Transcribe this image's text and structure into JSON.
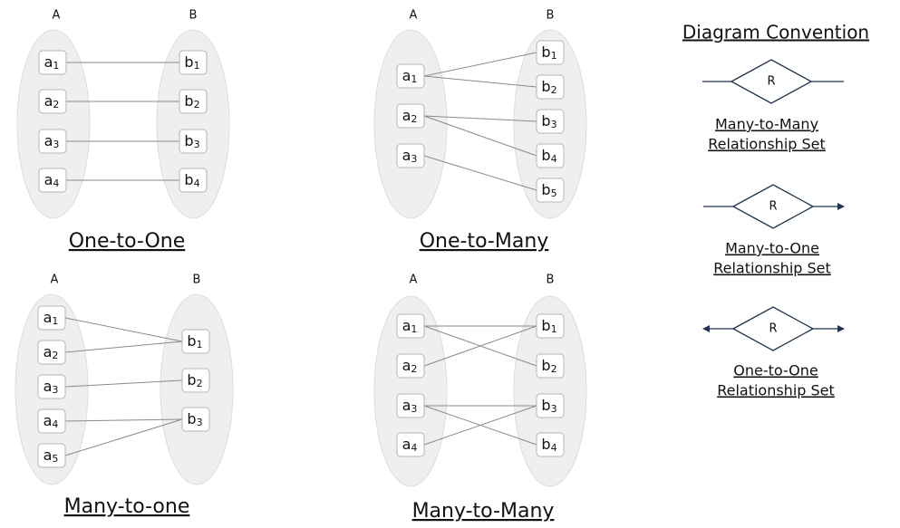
{
  "diagrams": [
    {
      "title": "One-to-One",
      "set_a": "A",
      "set_b": "B",
      "a_nodes": [
        {
          "base": "a",
          "sub": "1"
        },
        {
          "base": "a",
          "sub": "2"
        },
        {
          "base": "a",
          "sub": "3"
        },
        {
          "base": "a",
          "sub": "4"
        }
      ],
      "b_nodes": [
        {
          "base": "b",
          "sub": "1"
        },
        {
          "base": "b",
          "sub": "2"
        },
        {
          "base": "b",
          "sub": "3"
        },
        {
          "base": "b",
          "sub": "4"
        }
      ],
      "links": [
        [
          0,
          0
        ],
        [
          1,
          1
        ],
        [
          2,
          2
        ],
        [
          3,
          3
        ]
      ]
    },
    {
      "title": "One-to-Many",
      "set_a": "A",
      "set_b": "B",
      "a_nodes": [
        {
          "base": "a",
          "sub": "1"
        },
        {
          "base": "a",
          "sub": "2"
        },
        {
          "base": "a",
          "sub": "3"
        }
      ],
      "b_nodes": [
        {
          "base": "b",
          "sub": "1"
        },
        {
          "base": "b",
          "sub": "2"
        },
        {
          "base": "b",
          "sub": "3"
        },
        {
          "base": "b",
          "sub": "4"
        },
        {
          "base": "b",
          "sub": "5"
        }
      ],
      "links": [
        [
          0,
          0
        ],
        [
          0,
          1
        ],
        [
          1,
          2
        ],
        [
          1,
          3
        ],
        [
          2,
          4
        ]
      ]
    },
    {
      "title": "Many-to-one",
      "set_a": "A",
      "set_b": "B",
      "a_nodes": [
        {
          "base": "a",
          "sub": "1"
        },
        {
          "base": "a",
          "sub": "2"
        },
        {
          "base": "a",
          "sub": "3"
        },
        {
          "base": "a",
          "sub": "4"
        },
        {
          "base": "a",
          "sub": "5"
        }
      ],
      "b_nodes": [
        {
          "base": "b",
          "sub": "1"
        },
        {
          "base": "b",
          "sub": "2"
        },
        {
          "base": "b",
          "sub": "3"
        }
      ],
      "links": [
        [
          0,
          0
        ],
        [
          1,
          0
        ],
        [
          2,
          1
        ],
        [
          3,
          2
        ],
        [
          4,
          2
        ]
      ]
    },
    {
      "title": "Many-to-Many",
      "set_a": "A",
      "set_b": "B",
      "a_nodes": [
        {
          "base": "a",
          "sub": "1"
        },
        {
          "base": "a",
          "sub": "2"
        },
        {
          "base": "a",
          "sub": "3"
        },
        {
          "base": "a",
          "sub": "4"
        }
      ],
      "b_nodes": [
        {
          "base": "b",
          "sub": "1"
        },
        {
          "base": "b",
          "sub": "2"
        },
        {
          "base": "b",
          "sub": "3"
        },
        {
          "base": "b",
          "sub": "4"
        }
      ],
      "links": [
        [
          0,
          0
        ],
        [
          0,
          1
        ],
        [
          1,
          0
        ],
        [
          2,
          2
        ],
        [
          2,
          3
        ],
        [
          3,
          2
        ]
      ]
    }
  ],
  "convention": {
    "title": "Diagram Convention",
    "items": [
      {
        "symbol": "R",
        "line1": "Many-to-Many",
        "line2": "Relationship Set"
      },
      {
        "symbol": "R",
        "line1": "Many-to-One",
        "line2": "Relationship Set"
      },
      {
        "symbol": "R",
        "line1": "One-to-One",
        "line2": "Relationship Set"
      }
    ]
  }
}
